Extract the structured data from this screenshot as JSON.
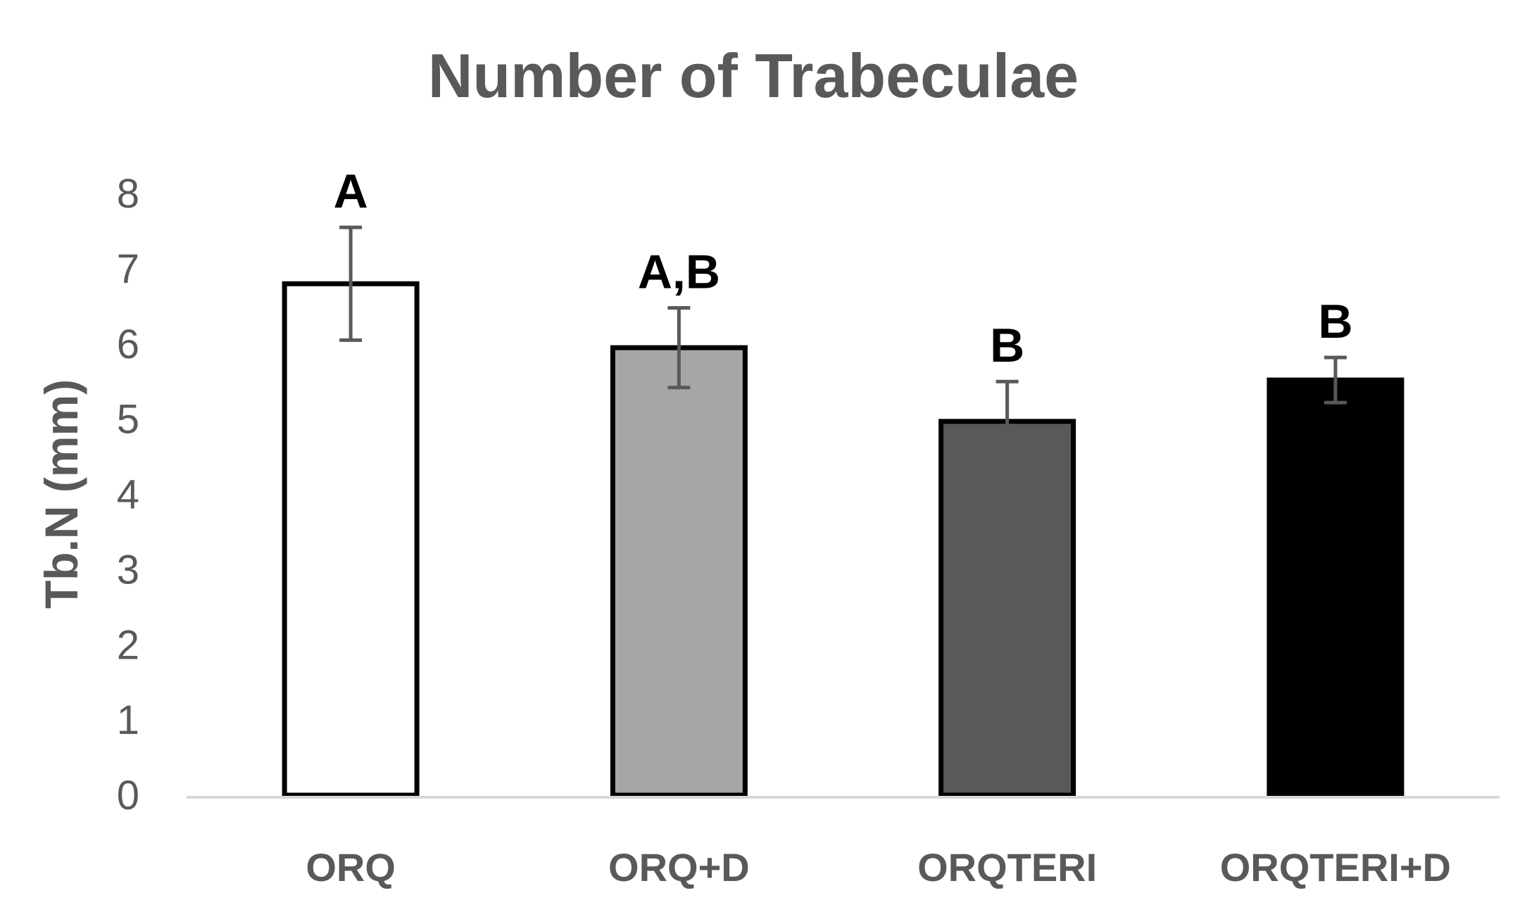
{
  "chart_data": {
    "type": "bar",
    "title": "Number of Trabeculae",
    "xlabel": "",
    "ylabel": "Tb.N (mm)",
    "ylim": [
      0,
      8
    ],
    "yticks": [
      0,
      1,
      2,
      3,
      4,
      5,
      6,
      7,
      8
    ],
    "grid": false,
    "legend": "none",
    "categories": [
      "ORQ",
      "ORQ+D",
      "ORQTERI",
      "ORQTERI+D"
    ],
    "values": [
      6.8,
      5.95,
      4.97,
      5.52
    ],
    "error": [
      0.75,
      0.53,
      0.53,
      0.3
    ],
    "significance_labels": [
      "A",
      "A,B",
      "B",
      "B"
    ],
    "bar_fills": [
      "#ffffff",
      "#a6a6a6",
      "#595959",
      "#000000"
    ],
    "bar_edge_color": "#000000",
    "text_color": "#595959",
    "error_bar_color": "#595959",
    "axis_color": "#d9d9d9"
  }
}
